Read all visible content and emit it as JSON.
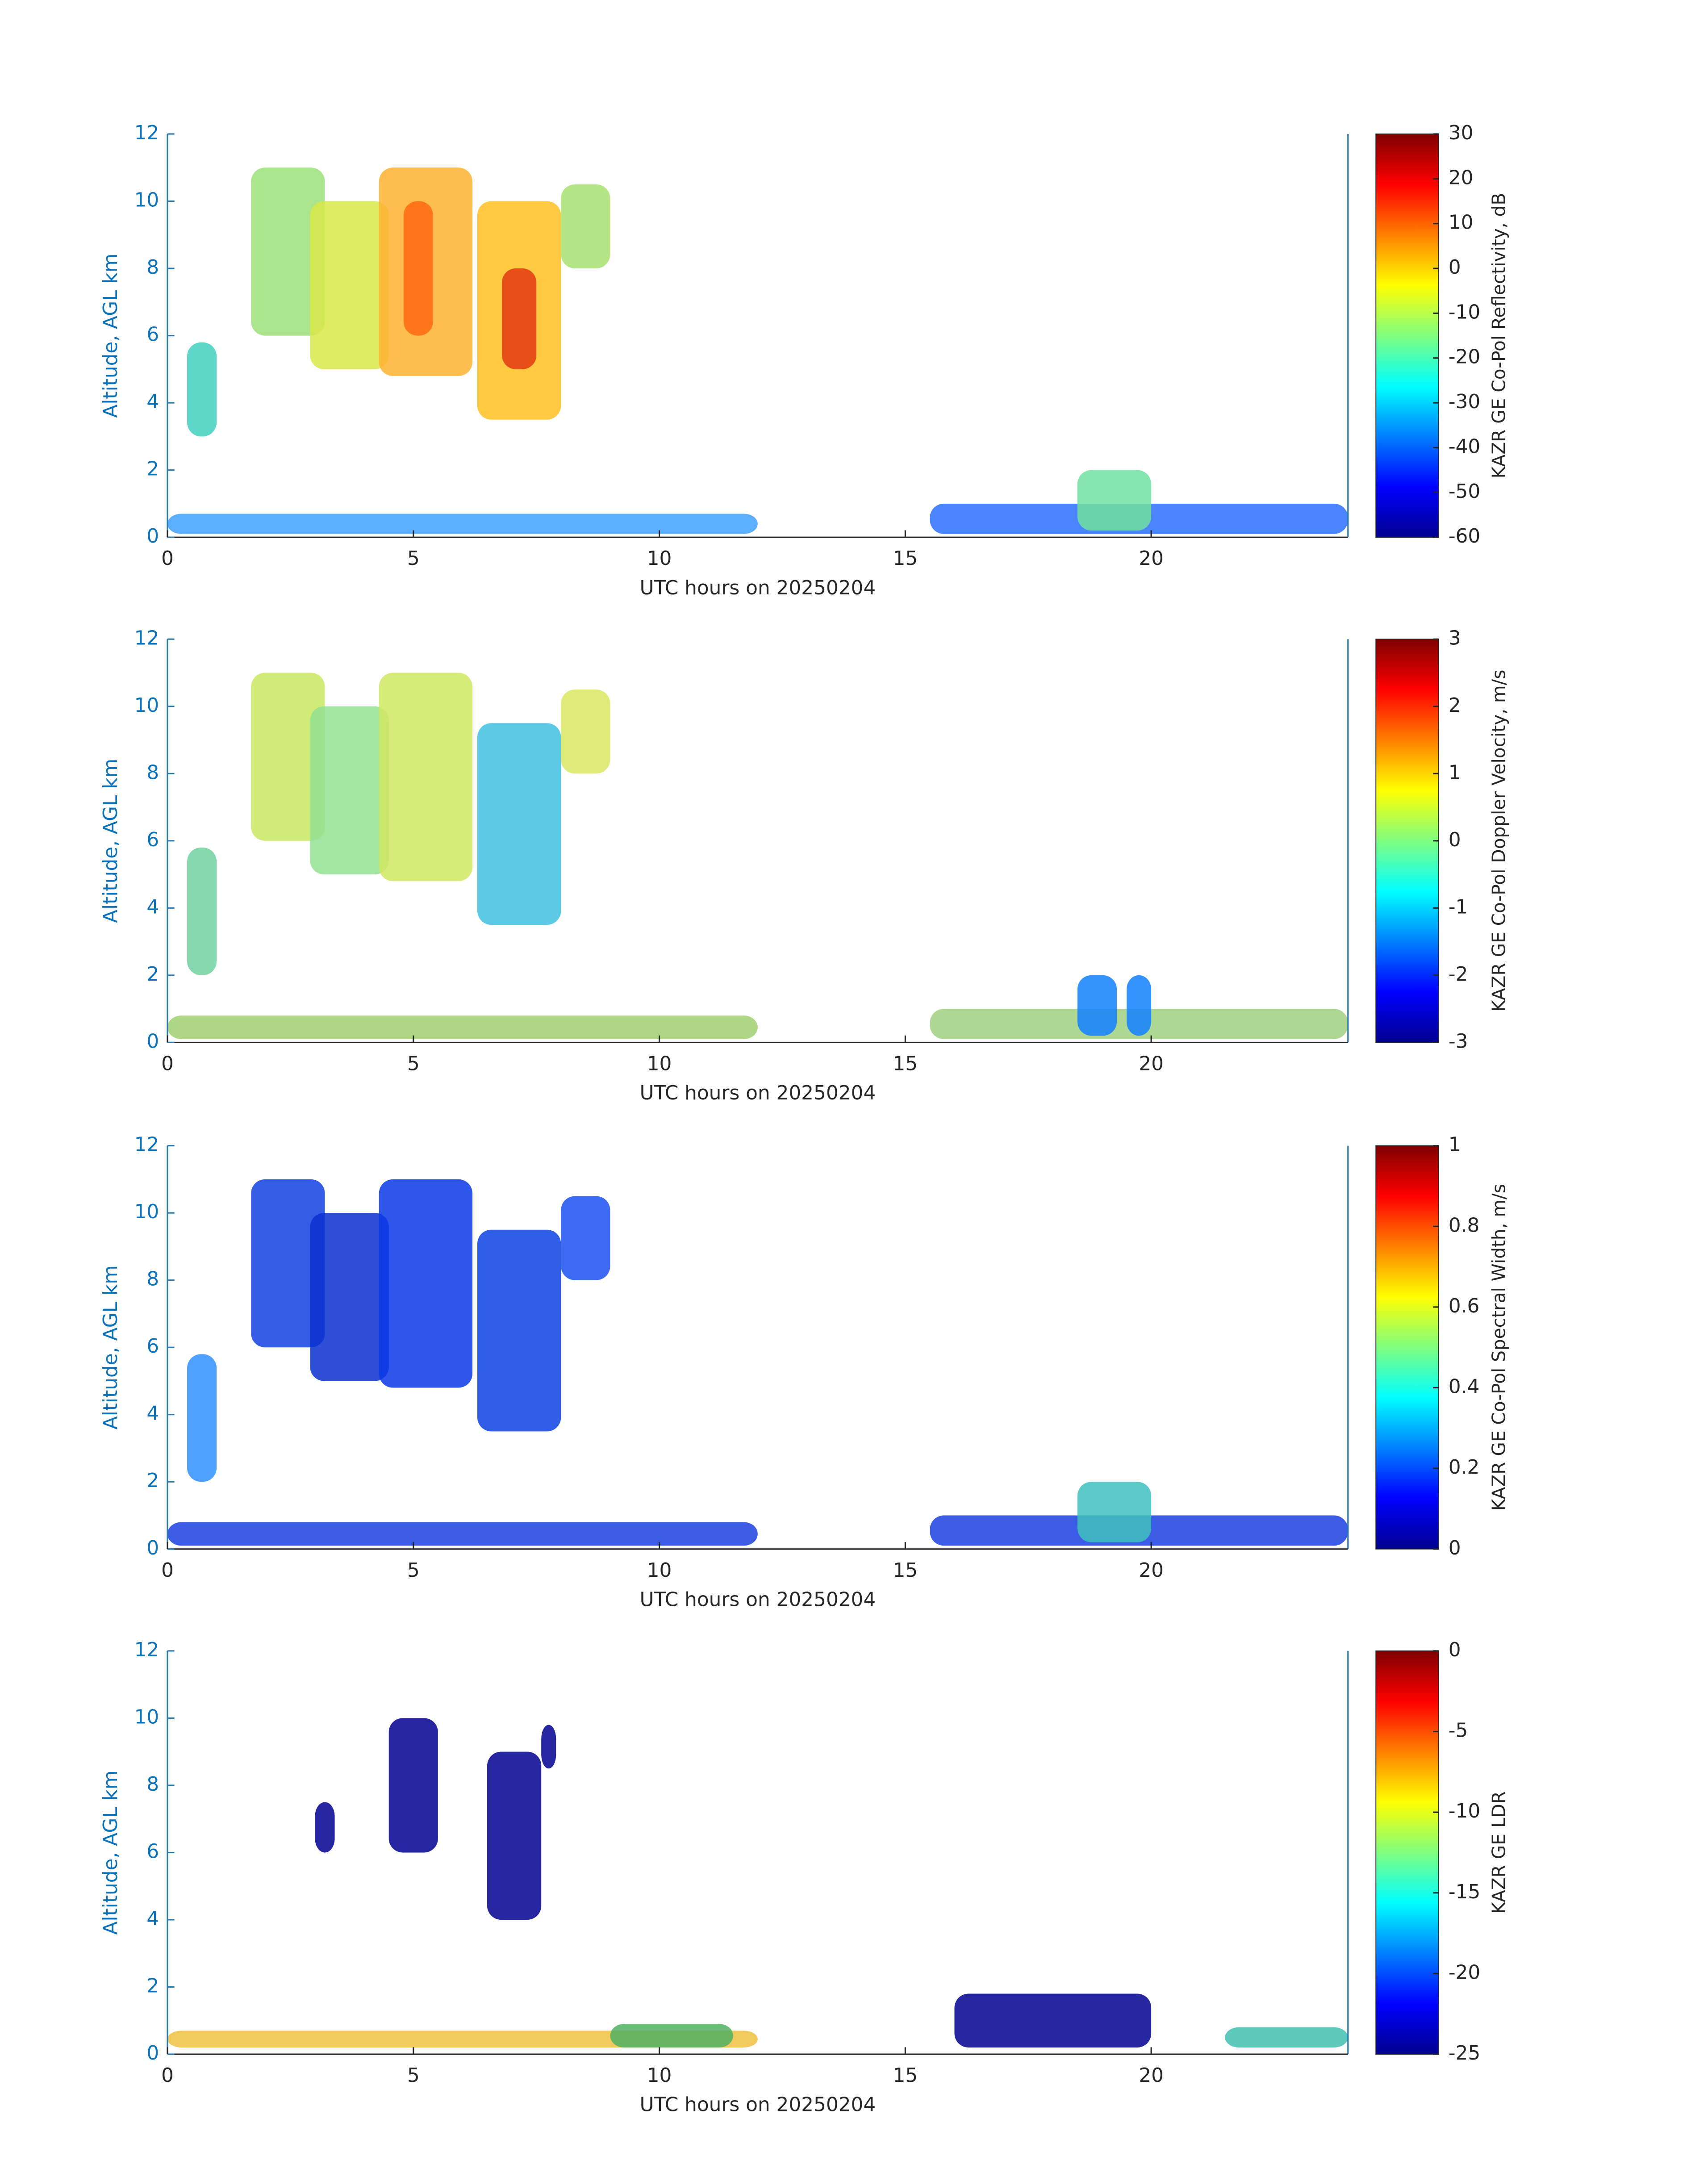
{
  "chart_data": [
    {
      "type": "heatmap",
      "x_label": "UTC hours on 20250204",
      "y_label": "Altitude, AGL km",
      "xlim": [
        0,
        24
      ],
      "xticks": [
        0,
        5,
        10,
        15,
        20
      ],
      "ylim": [
        0,
        12
      ],
      "yticks": [
        0,
        2,
        4,
        6,
        8,
        10,
        12
      ],
      "colormap": "jet",
      "colorbar_label": "KAZR GE Co-Pol Reflectivity, dB",
      "clim": [
        -60,
        30
      ],
      "cticks": [
        -60,
        -50,
        -40,
        -30,
        -20,
        -10,
        0,
        10,
        20,
        30
      ]
    },
    {
      "type": "heatmap",
      "x_label": "UTC hours on 20250204",
      "y_label": "Altitude, AGL km",
      "xlim": [
        0,
        24
      ],
      "xticks": [
        0,
        5,
        10,
        15,
        20
      ],
      "ylim": [
        0,
        12
      ],
      "yticks": [
        0,
        2,
        4,
        6,
        8,
        10,
        12
      ],
      "colormap": "jet",
      "colorbar_label": "KAZR GE Co-Pol Doppler Velocity, m/s",
      "clim": [
        -3,
        3
      ],
      "cticks": [
        -3,
        -2,
        -1,
        0,
        1,
        2,
        3
      ]
    },
    {
      "type": "heatmap",
      "x_label": "UTC hours on 20250204",
      "y_label": "Altitude, AGL km",
      "xlim": [
        0,
        24
      ],
      "xticks": [
        0,
        5,
        10,
        15,
        20
      ],
      "ylim": [
        0,
        12
      ],
      "yticks": [
        0,
        2,
        4,
        6,
        8,
        10,
        12
      ],
      "colormap": "jet",
      "colorbar_label": "KAZR GE Co-Pol Spectral Width, m/s",
      "clim": [
        0,
        1
      ],
      "cticks": [
        0,
        0.2,
        0.4,
        0.6,
        0.8,
        1
      ]
    },
    {
      "type": "heatmap",
      "x_label": "UTC hours on 20250204",
      "y_label": "Altitude, AGL km",
      "xlim": [
        0,
        24
      ],
      "xticks": [
        0,
        5,
        10,
        15,
        20
      ],
      "ylim": [
        0,
        12
      ],
      "yticks": [
        0,
        2,
        4,
        6,
        8,
        10,
        12
      ],
      "colormap": "jet",
      "colorbar_label": "KAZR GE LDR",
      "clim": [
        -25,
        0
      ],
      "cticks": [
        -25,
        -20,
        -15,
        -10,
        -5,
        0
      ]
    }
  ]
}
